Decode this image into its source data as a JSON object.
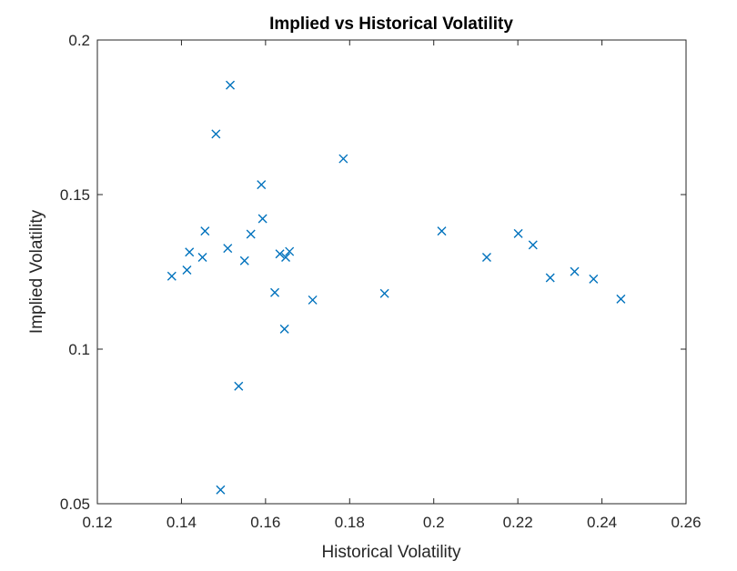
{
  "chart_data": {
    "type": "scatter",
    "title": "Implied vs Historical Volatility",
    "xlabel": "Historical Volatility",
    "ylabel": "Implied Volatility",
    "xlim": [
      0.12,
      0.26
    ],
    "ylim": [
      0.05,
      0.2
    ],
    "xticks": [
      "0.12",
      "0.14",
      "0.16",
      "0.18",
      "0.2",
      "0.22",
      "0.24",
      "0.26"
    ],
    "yticks": [
      "0.05",
      "0.1",
      "0.15",
      "0.2"
    ],
    "grid": false,
    "legend": "none",
    "marker": "x",
    "marker_color": "#0072BD",
    "points": [
      {
        "x": 0.1377,
        "y": 0.1236
      },
      {
        "x": 0.1413,
        "y": 0.1256
      },
      {
        "x": 0.1419,
        "y": 0.1314
      },
      {
        "x": 0.145,
        "y": 0.1297
      },
      {
        "x": 0.1456,
        "y": 0.1382
      },
      {
        "x": 0.1482,
        "y": 0.1696
      },
      {
        "x": 0.1493,
        "y": 0.0545
      },
      {
        "x": 0.151,
        "y": 0.1326
      },
      {
        "x": 0.1516,
        "y": 0.1854
      },
      {
        "x": 0.1536,
        "y": 0.088
      },
      {
        "x": 0.155,
        "y": 0.1286
      },
      {
        "x": 0.1565,
        "y": 0.1372
      },
      {
        "x": 0.159,
        "y": 0.1532
      },
      {
        "x": 0.1593,
        "y": 0.1422
      },
      {
        "x": 0.1622,
        "y": 0.1183
      },
      {
        "x": 0.1634,
        "y": 0.1308
      },
      {
        "x": 0.1645,
        "y": 0.1065
      },
      {
        "x": 0.1648,
        "y": 0.1297
      },
      {
        "x": 0.1657,
        "y": 0.1316
      },
      {
        "x": 0.1712,
        "y": 0.1159
      },
      {
        "x": 0.1785,
        "y": 0.1616
      },
      {
        "x": 0.1883,
        "y": 0.118
      },
      {
        "x": 0.2019,
        "y": 0.1382
      },
      {
        "x": 0.2126,
        "y": 0.1297
      },
      {
        "x": 0.2201,
        "y": 0.1374
      },
      {
        "x": 0.2236,
        "y": 0.1337
      },
      {
        "x": 0.2277,
        "y": 0.1231
      },
      {
        "x": 0.2335,
        "y": 0.1251
      },
      {
        "x": 0.238,
        "y": 0.1227
      },
      {
        "x": 0.2445,
        "y": 0.1162
      }
    ]
  }
}
